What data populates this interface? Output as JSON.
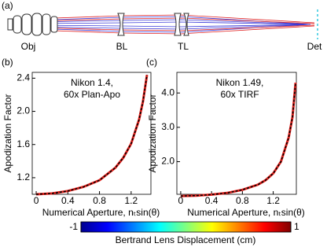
{
  "panel_a": {
    "label": "(a)",
    "labels": [
      "Obj",
      "BL",
      "TL",
      "Det"
    ]
  },
  "chart_data": [
    {
      "type": "line",
      "label": "(b)",
      "title": [
        "Nikon 1.4,",
        "60x Plan-Apo"
      ],
      "ylabel": "Apodization Factor",
      "xlabel": "Numerical Aperture, nₜsin(θ)",
      "x": [
        0,
        0.2,
        0.4,
        0.6,
        0.8,
        1.0,
        1.1,
        1.2,
        1.3,
        1.35,
        1.4
      ],
      "series": [
        {
          "color": "#e8231e",
          "values": [
            1.0,
            1.01,
            1.04,
            1.09,
            1.17,
            1.32,
            1.44,
            1.61,
            1.9,
            2.12,
            2.44
          ]
        },
        {
          "color": "#000000",
          "dashed": true,
          "values": [
            1.0,
            1.01,
            1.04,
            1.09,
            1.17,
            1.32,
            1.44,
            1.61,
            1.9,
            2.12,
            2.44
          ]
        }
      ],
      "xlim": [
        -0.05,
        1.45
      ],
      "ylim": [
        1.0,
        2.47
      ],
      "xticks": [
        0,
        0.4,
        0.8,
        1.2
      ],
      "yticks": [
        1.2,
        1.6,
        {
          "value": 2,
          "label": "2.0"
        },
        2.4
      ]
    },
    {
      "type": "line",
      "label": "(c)",
      "title": [
        "Nikon 1.49,",
        "60x TIRF"
      ],
      "ylabel": "Apodization Factor",
      "xlabel": "Numerical Aperture, nₜsin(θ)",
      "x": [
        0,
        0.2,
        0.4,
        0.6,
        0.8,
        1.0,
        1.1,
        1.2,
        1.3,
        1.4,
        1.45,
        1.49
      ],
      "series": [
        {
          "color": "#e8231e",
          "values": [
            1.0,
            1.01,
            1.04,
            1.09,
            1.18,
            1.33,
            1.46,
            1.66,
            2.0,
            2.7,
            3.3,
            4.3
          ]
        },
        {
          "color": "#000000",
          "dashed": true,
          "values": [
            1.0,
            1.01,
            1.04,
            1.09,
            1.18,
            1.33,
            1.46,
            1.66,
            2.0,
            2.7,
            3.3,
            4.3
          ]
        }
      ],
      "xlim": [
        -0.05,
        1.5
      ],
      "ylim": [
        1.05,
        4.6
      ],
      "xticks": [
        0,
        0.4,
        0.8,
        1.2
      ],
      "yticks": [
        {
          "value": 2,
          "label": "2.0"
        },
        {
          "value": 3,
          "label": "3.0"
        },
        {
          "value": 4,
          "label": "4.0"
        }
      ]
    }
  ],
  "colorbar": {
    "label": "Bertrand Lens Displacement (cm)",
    "lim": [
      -1,
      1
    ],
    "ticks": [
      -1,
      1
    ]
  }
}
